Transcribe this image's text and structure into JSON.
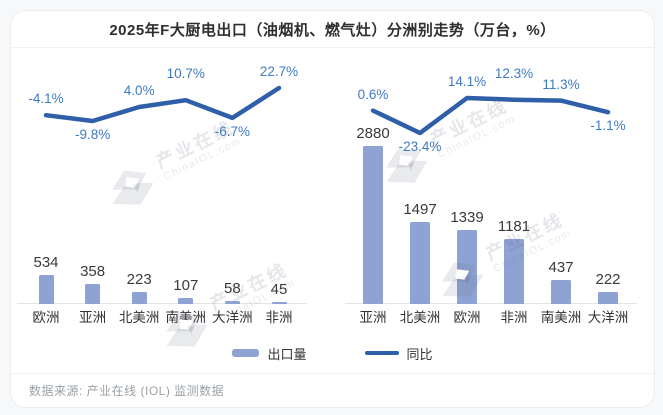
{
  "title": "2025年F大厨电出口（油烟机、燃气灶）分洲别走势（万台，%）",
  "legend": {
    "bar_label": "出口量",
    "line_label": "同比"
  },
  "footer": {
    "source": "数据来源: 产业在线 (IOL) 监测数据"
  },
  "watermark": {
    "name": "产业在线",
    "domain": "ChinaIOL.com"
  },
  "colors": {
    "bar": "#8EA2D4",
    "line": "#2F5FA8",
    "pct_label": "#3E7BC4",
    "value_label": "#3a3a3a",
    "axis": "#e4e4e4"
  },
  "chart_data": [
    {
      "type": "bar+line",
      "title": "左图：出口量与同比（按洲）",
      "categories": [
        "欧洲",
        "亚洲",
        "北美洲",
        "南美洲",
        "大洋洲",
        "非洲"
      ],
      "series": [
        {
          "name": "出口量",
          "type": "bar",
          "unit": "万台",
          "values": [
            534,
            358,
            223,
            107,
            58,
            45
          ]
        },
        {
          "name": "同比",
          "type": "line",
          "unit": "%",
          "values": [
            -4.1,
            -9.8,
            4.0,
            10.7,
            -6.7,
            22.7
          ]
        }
      ],
      "ylim_bar": [
        0,
        3000
      ],
      "grid": false,
      "legend_position": "bottom"
    },
    {
      "type": "bar+line",
      "title": "右图：出口量与同比（按洲）",
      "categories": [
        "亚洲",
        "北美洲",
        "欧洲",
        "非洲",
        "南美洲",
        "大洋洲"
      ],
      "series": [
        {
          "name": "出口量",
          "type": "bar",
          "unit": "万台",
          "values": [
            2880,
            1497,
            1339,
            1181,
            437,
            222
          ]
        },
        {
          "name": "同比",
          "type": "line",
          "unit": "%",
          "values": [
            0.6,
            -23.4,
            14.1,
            12.3,
            11.3,
            -1.1
          ]
        }
      ],
      "ylim_bar": [
        0,
        3000
      ],
      "grid": false,
      "legend_position": "bottom"
    }
  ]
}
